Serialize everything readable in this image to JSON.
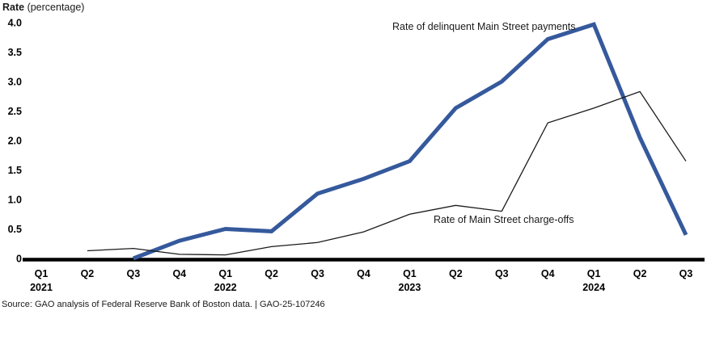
{
  "axis_title": {
    "bold": "Rate",
    "rest": " (percentage)"
  },
  "source_line": "Source: GAO analysis of Federal Reserve Bank of Boston data.  |  GAO-25-107246",
  "chart_data": {
    "type": "line",
    "x_categories": [
      "Q1",
      "Q2",
      "Q3",
      "Q4",
      "Q1",
      "Q2",
      "Q3",
      "Q4",
      "Q1",
      "Q2",
      "Q3",
      "Q4",
      "Q1",
      "Q2",
      "Q3"
    ],
    "year_labels": [
      {
        "text": "2021",
        "index": 0
      },
      {
        "text": "2022",
        "index": 4
      },
      {
        "text": "2023",
        "index": 8
      },
      {
        "text": "2024",
        "index": 12
      }
    ],
    "y_tick_labels": [
      "0",
      "0.5",
      "1.0",
      "1.5",
      "2.0",
      "2.5",
      "3.0",
      "3.5",
      "4.0"
    ],
    "ylim": [
      0,
      4.0
    ],
    "grid": false,
    "axis_color": "#000000",
    "series": [
      {
        "name": "Rate of delinquent Main Street payments",
        "color": "#35599C",
        "stroke_width": 5,
        "values": [
          null,
          null,
          0,
          0.3,
          0.5,
          0.46,
          1.1,
          1.35,
          1.65,
          2.55,
          3.0,
          3.72,
          3.97,
          2.05,
          0.4
        ]
      },
      {
        "name": "Rate of Main Street charge-offs",
        "color": "#1a1a1a",
        "stroke_width": 1.3,
        "values": [
          null,
          0.13,
          0.17,
          0.07,
          0.06,
          0.2,
          0.27,
          0.45,
          0.75,
          0.9,
          0.8,
          2.3,
          2.55,
          2.83,
          1.65
        ]
      }
    ]
  }
}
